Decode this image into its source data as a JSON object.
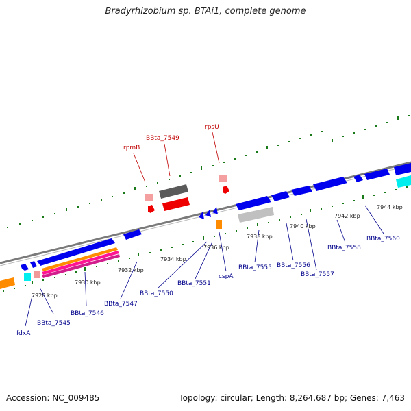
{
  "title": "Bradyrhizobium sp. BTAi1, complete genome",
  "footer": {
    "accession": "Accession: NC_009485",
    "topology": "Topology: circular; Length: 8,264,687 bp; Genes: 7,463"
  },
  "scale_labels": [
    "7928 kbp",
    "7930 kbp",
    "7932 kbp",
    "7934 kbp",
    "7936 kbp",
    "7938 kbp",
    "7940 kbp",
    "7942 kbp",
    "7944 kbp"
  ],
  "gene_labels_top": [
    "rpmB",
    "BBta_7549",
    "rpsU"
  ],
  "gene_labels_bottom": [
    "fdxA",
    "BBta_7545",
    "BBta_7546",
    "BBta_7547",
    "BBta_7550",
    "BBta_7551",
    "cspA",
    "BBta_7555",
    "BBta_7556",
    "BBta_7557",
    "BBta_7558",
    "BBta_7560"
  ],
  "colors": {
    "backbone": "#888888",
    "forward_gene": "#0000ee",
    "reverse_gene": "#ee0000",
    "label_red": "#c00000",
    "label_blue": "#00008b",
    "tick": "#1a7a1a"
  }
}
